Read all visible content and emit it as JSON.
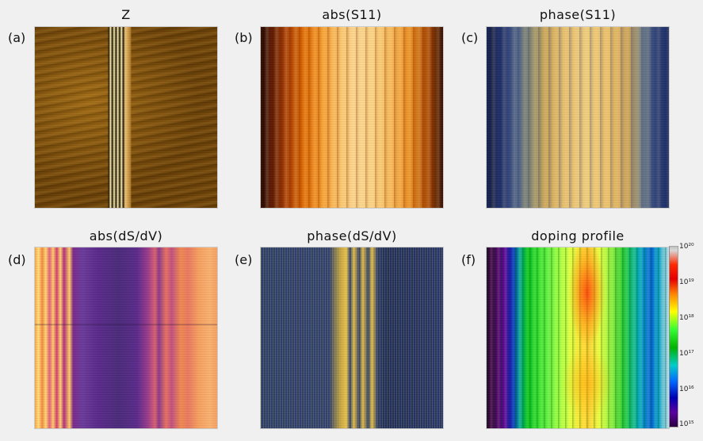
{
  "panels": [
    {
      "letter": "(a)",
      "title": "Z"
    },
    {
      "letter": "(b)",
      "title": "abs(S11)"
    },
    {
      "letter": "(c)",
      "title": "phase(S11)"
    },
    {
      "letter": "(d)",
      "title": "abs(dS/dV)"
    },
    {
      "letter": "(e)",
      "title": "phase(dS/dV)"
    },
    {
      "letter": "(f)",
      "title": "doping profile"
    }
  ],
  "colorbar": {
    "ticks": [
      "10²⁰",
      "10¹⁹",
      "10¹⁸",
      "10¹⁷",
      "10¹⁶",
      "10¹⁵"
    ]
  }
}
